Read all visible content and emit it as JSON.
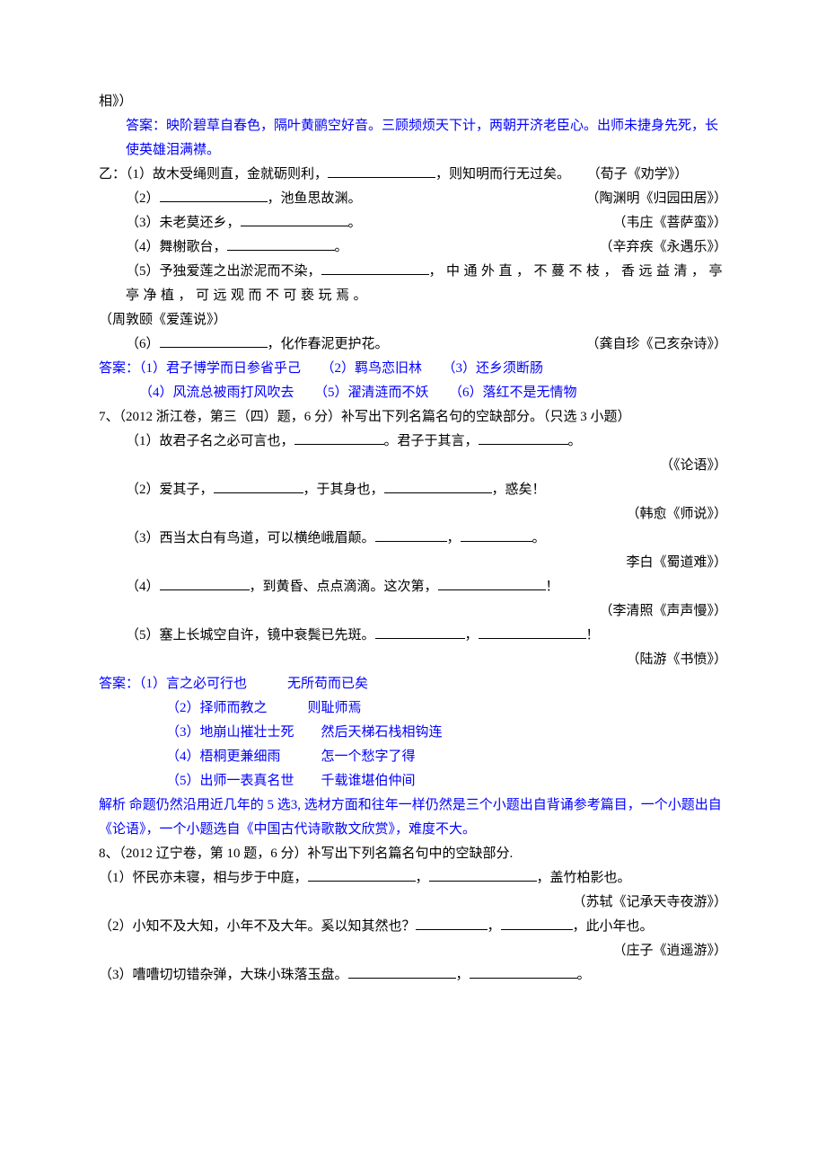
{
  "colors": {
    "text": "#000000",
    "answer": "#0000ff",
    "background": "#ffffff"
  },
  "fontsize": 15,
  "lines": {
    "l1": "相》）",
    "l2": "答案：映阶碧草自春色，隔叶黄鹂空好音。三顾频烦天下计，两朝开济老臣心。出师未捷身先死，长使英雄泪满襟。",
    "l3a": "乙：（1）故木受绳则直，金就砺则利，",
    "l3b": "，则知明而行无过矣。",
    "l3c": "（荀子《劝学》）",
    "l4a": "（2）",
    "l4b": "，池鱼思故渊。",
    "l4c": "（陶渊明《归园田居》）",
    "l5a": "（3）未老莫还乡，",
    "l5b": "。",
    "l5c": "（韦庄《菩萨蛮》）",
    "l6a": "（4）舞榭歌台，",
    "l6b": "。",
    "l6c": "（辛弃疾《永遇乐》）",
    "l7a": "（5）予独爱莲之出淤泥而不染，",
    "l7b": "，中通外直，不蔓不枝，香远益清，亭亭净植，可远观而不可亵玩焉。",
    "l7c": "（周敦颐《爱莲说》）",
    "l8a": "（6）",
    "l8b": "，化作春泥更护花。",
    "l8c": "（龚自珍《己亥杂诗》）",
    "ans2_1": "答案：（1）君子博学而日参省乎己　　（2）羁鸟恋旧林　　（3）还乡须断肠",
    "ans2_2": "（4）风流总被雨打风吹去　　（5）濯清涟而不妖　　（6）落红不是无情物",
    "q7": "7、（2012 浙江卷，第三（四）题，6 分）补写出下列名篇名句的空缺部分。（只选 3 小题）",
    "q7_1a": "（1）故君子名之必可言也，",
    "q7_1b": "。君子于其言，",
    "q7_1c": "。",
    "q7_1d": "（《论语》）",
    "q7_2a": "（2）爱其子，",
    "q7_2b": "，于其身也，",
    "q7_2c": "，惑矣！",
    "q7_2d": "（韩愈《师说》）",
    "q7_3a": "（3）西当太白有鸟道，可以横绝峨眉颠。",
    "q7_3b": "，",
    "q7_3c": "。",
    "q7_3d": "李白《蜀道难》）",
    "q7_4a": "（4）",
    "q7_4b": "，到黄昏、点点滴滴。这次第，",
    "q7_4c": "！",
    "q7_4d": "（李清照《声声慢》）",
    "q7_5a": "（5）塞上长城空自许，镜中衰鬓已先斑。",
    "q7_5b": "，",
    "q7_5c": "！",
    "q7_5d": "（陆游《书愤》）",
    "ans7_1": "答案：（1）言之必可行也　　　无所苟而已矣",
    "ans7_2": "（2）择师而教之　　　则耻师焉",
    "ans7_3": "（3）地崩山摧壮士死　　然后天梯石栈相钩连",
    "ans7_4": "（4）梧桐更兼细雨　　　怎一个愁字了得",
    "ans7_5": "（5）出师一表真名世　　千载谁堪伯仲间",
    "exp7": "解析 命题仍然沿用近几年的 5 选3, 选材方面和往年一样仍然是三个小题出自背诵参考篇目，一个小题出自《论语》，一个小题选自《中国古代诗歌散文欣赏》，难度不大。",
    "q8": "8、（2012 辽宁卷，第 10 题，6 分）补写出下列名篇名句中的空缺部分.",
    "q8_1a": "（1）怀民亦未寝，相与步于中庭，",
    "q8_1b": "，",
    "q8_1c": "，盖竹柏影也。",
    "q8_1d": "（苏轼《记承天寺夜游》）",
    "q8_2a": "（2）小知不及大知，小年不及大年。奚以知其然也？",
    "q8_2b": "，",
    "q8_2c": "，此小年也。",
    "q8_2d": "（庄子《逍遥游》）",
    "q8_3a": "（3）嘈嘈切切错杂弹，大珠小珠落玉盘。",
    "q8_3b": "，",
    "q8_3c": "。"
  }
}
